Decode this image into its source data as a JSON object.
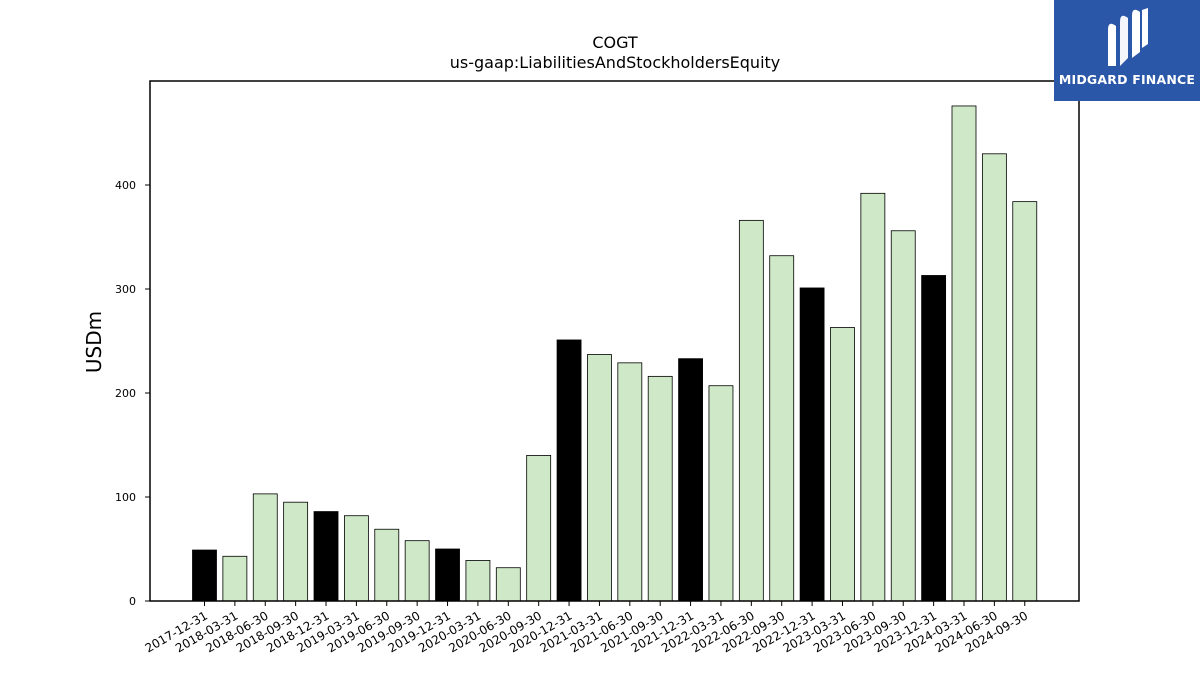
{
  "chart_data": {
    "type": "bar",
    "title": "COGT",
    "subtitle": "us-gaap:LiabilitiesAndStockholdersEquity",
    "xlabel": "",
    "ylabel": "USDm",
    "ylim": [
      0,
      500
    ],
    "yticks": [
      0,
      100,
      200,
      300,
      400
    ],
    "grid": false,
    "categories": [
      "2017-12-31",
      "2018-03-31",
      "2018-06-30",
      "2018-09-30",
      "2018-12-31",
      "2019-03-31",
      "2019-06-30",
      "2019-09-30",
      "2019-12-31",
      "2020-03-31",
      "2020-06-30",
      "2020-09-30",
      "2020-12-31",
      "2021-03-31",
      "2021-06-30",
      "2021-09-30",
      "2021-12-31",
      "2022-03-31",
      "2022-06-30",
      "2022-09-30",
      "2022-12-31",
      "2023-03-31",
      "2023-06-30",
      "2023-09-30",
      "2023-12-31",
      "2024-03-31",
      "2024-06-30",
      "2024-09-30"
    ],
    "values": [
      49,
      43,
      103,
      95,
      86,
      82,
      69,
      58,
      50,
      39,
      32,
      140,
      251,
      237,
      229,
      216,
      233,
      207,
      366,
      332,
      301,
      263,
      392,
      356,
      313,
      476,
      430,
      384
    ],
    "colors": {
      "year_end": "#000000",
      "quarter": "#cfe9c8",
      "edge": "#000000"
    }
  },
  "logo": {
    "text": "MIDGARD FINANCE",
    "icon": "midgard-logo-icon",
    "background": "#2b57a8"
  }
}
